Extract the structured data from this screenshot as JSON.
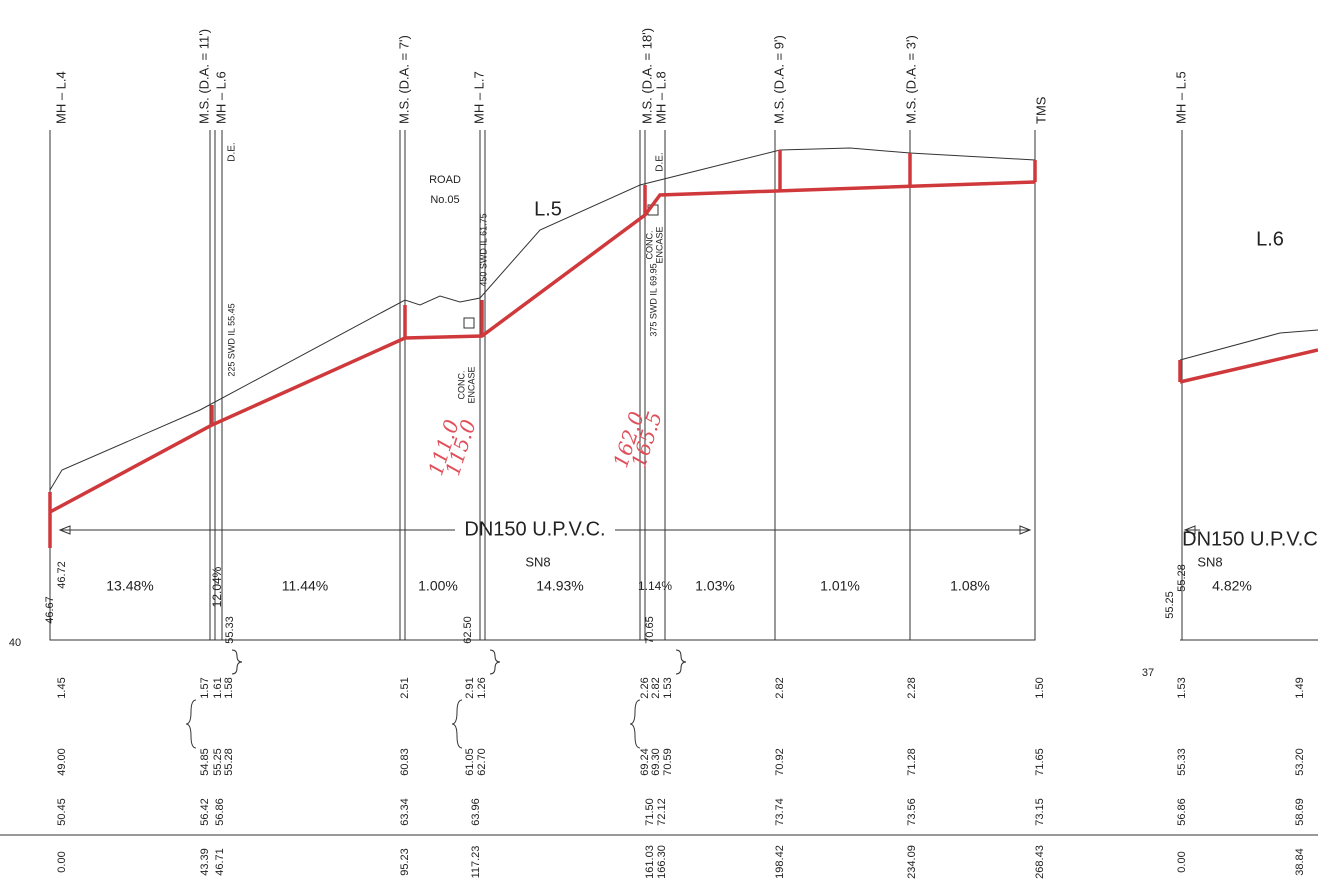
{
  "stations": [
    "MH – L.4",
    "M.S. (D.A. = 11')",
    "MH – L.6",
    "M.S. (D.A. = 7')",
    "MH – L.7",
    "M.S. (D.A. = 18')",
    "MH – L.8",
    "M.S. (D.A. = 9')",
    "M.S. (D.A. = 3')",
    "TMS",
    "MH – L.5"
  ],
  "notes": [
    "ROAD",
    "No.05",
    "L.5",
    "L.6",
    "225 SWD IL 55.45",
    "D.E.",
    "450 SWD IL 61.75",
    "CONC.",
    "ENCASE",
    "375 SWD IL 69.95",
    "CONC.",
    "ENCASE",
    "D.E.",
    "DN150 U.P.V.C.",
    "SN8",
    "DN150 U.P.V.C",
    "SN8"
  ],
  "handwritten": [
    "111.0",
    "115.0",
    "162.0",
    "165.5"
  ],
  "slopes": [
    "13.48%",
    "12.04%",
    "11.44%",
    "1.00%",
    "14.93%",
    "1.14%",
    "1.03%",
    "1.01%",
    "1.08%",
    "4.82%"
  ],
  "levels": [
    "46.67",
    "46.72",
    "55.33",
    "62.50",
    "70.65",
    "55.28",
    "55.25",
    "40",
    "37"
  ],
  "table": {
    "rows": [
      [
        "1.45",
        "1.57",
        "1.61",
        "1.58",
        "2.51",
        "2.91",
        "1.26",
        "2.26",
        "2.82",
        "1.53",
        "2.82",
        "2.28",
        "1.50",
        "1.53",
        "1.49"
      ],
      [
        "49.00",
        "54.85",
        "55.25",
        "55.28",
        "60.83",
        "61.05",
        "62.70",
        "69.24",
        "69.30",
        "70.59",
        "70.92",
        "71.28",
        "71.65",
        "55.33",
        "53.20"
      ],
      [
        "50.45",
        "56.42",
        "56.86",
        "63.34",
        "63.96",
        "71.50",
        "72.12",
        "73.74",
        "73.56",
        "73.15",
        "56.86",
        "58.69"
      ],
      [
        "0.00",
        "43.39",
        "46.71",
        "95.23",
        "117.23",
        "161.03",
        "166.30",
        "198.42",
        "234.09",
        "268.43",
        "0.00",
        "38.84"
      ]
    ]
  }
}
